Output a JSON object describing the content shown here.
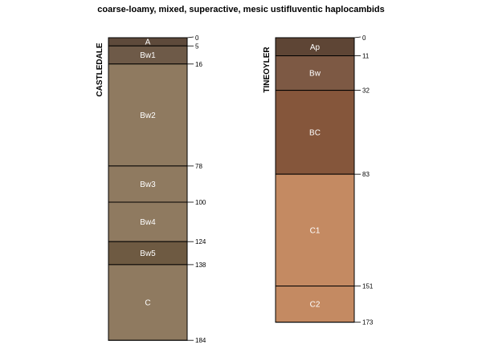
{
  "title": "coarse-loamy, mixed, superactive, mesic ustifluventic haplocambids",
  "profiles": [
    {
      "name": "CASTLEDALE",
      "bottom_depth": 184,
      "horizons": [
        {
          "name": "A",
          "top": 0,
          "bottom": 5,
          "color": "#5e4a3b"
        },
        {
          "name": "Bw1",
          "top": 5,
          "bottom": 16,
          "color": "#6e5a48"
        },
        {
          "name": "Bw2",
          "top": 16,
          "bottom": 78,
          "color": "#8f7a60"
        },
        {
          "name": "Bw3",
          "top": 78,
          "bottom": 100,
          "color": "#8f7a60"
        },
        {
          "name": "Bw4",
          "top": 100,
          "bottom": 124,
          "color": "#8f7a60"
        },
        {
          "name": "Bw5",
          "top": 124,
          "bottom": 138,
          "color": "#6e5a42"
        },
        {
          "name": "C",
          "top": 138,
          "bottom": 184,
          "color": "#8f7a60"
        }
      ],
      "depth_ticks": [
        0,
        5,
        16,
        78,
        100,
        124,
        138,
        184
      ]
    },
    {
      "name": "TINEOYLER",
      "bottom_depth": 173,
      "horizons": [
        {
          "name": "Ap",
          "top": 0,
          "bottom": 11,
          "color": "#5e4535"
        },
        {
          "name": "Bw",
          "top": 11,
          "bottom": 32,
          "color": "#7d5944"
        },
        {
          "name": "BC",
          "top": 32,
          "bottom": 83,
          "color": "#85563b"
        },
        {
          "name": "C1",
          "top": 83,
          "bottom": 151,
          "color": "#c48a62"
        },
        {
          "name": "C2",
          "top": 151,
          "bottom": 173,
          "color": "#c48a62"
        }
      ],
      "depth_ticks": [
        0,
        11,
        32,
        83,
        151,
        173
      ]
    }
  ]
}
